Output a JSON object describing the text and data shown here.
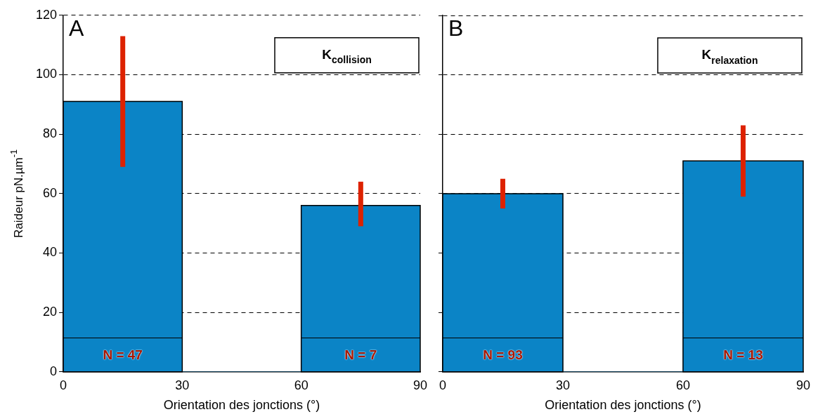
{
  "chart_data": [
    {
      "type": "histogram",
      "title": "A",
      "bins": [
        0,
        30,
        60,
        90
      ],
      "values": [
        91,
        0,
        56
      ],
      "color": "#0b84c6",
      "errors": [
        [
          69,
          113
        ],
        null,
        [
          49,
          64
        ]
      ],
      "xlabel": "Orientation des jonctions (°)",
      "ylabel": "Raideur pN.µm$^{-1}$",
      "xlim": [
        0,
        90
      ],
      "xticks": [
        0,
        30,
        60,
        90
      ],
      "ylim": [
        0,
        120
      ],
      "yticks": [
        0,
        20,
        40,
        60,
        80,
        100,
        120
      ],
      "grid": "y",
      "annotations": [
        "K$_{collision}$",
        "N = 47",
        "N = 7"
      ]
    },
    {
      "type": "histogram",
      "title": "B",
      "bins": [
        0,
        30,
        60,
        90
      ],
      "values": [
        60,
        0,
        71
      ],
      "color": "#0b84c6",
      "errors": [
        [
          55,
          65
        ],
        null,
        [
          59,
          83
        ]
      ],
      "xlabel": "Orientation des jonctions (°)",
      "xlim": [
        0,
        90
      ],
      "xticks": [
        0,
        30,
        60,
        90
      ],
      "ylim": [
        0,
        120
      ],
      "yticks": [
        0,
        20,
        40,
        60,
        80,
        100,
        120
      ],
      "grid": "y",
      "tick_labels": "x",
      "annotations": [
        "K$_{relaxation}$",
        "N = 93",
        "N = 13"
      ]
    }
  ]
}
